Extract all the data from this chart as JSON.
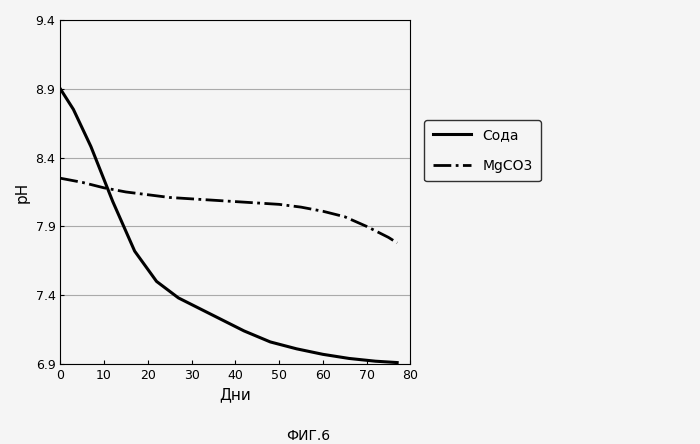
{
  "title": "",
  "xlabel": "Дни",
  "ylabel": "pH",
  "fig_label": "ФИГ.6",
  "xlim": [
    0,
    80
  ],
  "ylim": [
    6.9,
    9.4
  ],
  "yticks": [
    6.9,
    7.4,
    7.9,
    8.4,
    8.9,
    9.4
  ],
  "xticks": [
    0,
    10,
    20,
    30,
    40,
    50,
    60,
    70,
    80
  ],
  "soda_x": [
    0,
    3,
    7,
    12,
    17,
    22,
    27,
    32,
    37,
    42,
    48,
    54,
    60,
    66,
    72,
    77
  ],
  "soda_y": [
    8.9,
    8.75,
    8.48,
    8.08,
    7.72,
    7.5,
    7.38,
    7.3,
    7.22,
    7.14,
    7.06,
    7.01,
    6.97,
    6.94,
    6.92,
    6.91
  ],
  "mgco3_x": [
    0,
    5,
    10,
    15,
    20,
    25,
    30,
    35,
    40,
    45,
    50,
    55,
    60,
    65,
    70,
    75,
    77
  ],
  "mgco3_y": [
    8.25,
    8.22,
    8.18,
    8.15,
    8.13,
    8.11,
    8.1,
    8.09,
    8.08,
    8.07,
    8.06,
    8.04,
    8.01,
    7.97,
    7.9,
    7.82,
    7.78
  ],
  "line_color": "#000000",
  "background_color": "#f5f5f5",
  "grid_color": "#aaaaaa",
  "legend_soda": "Сода",
  "legend_mgco3": "MgCO3"
}
